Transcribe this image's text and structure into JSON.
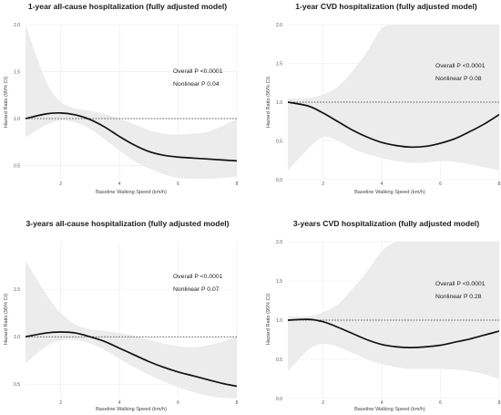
{
  "chart_data": [
    {
      "type": "line",
      "title": "1-year all-cause hospitalization (fully adjusted model)",
      "xlabel": "Baseline Walking Speed (km/h)",
      "ylabel": "Hazard Ratio (95% CI)",
      "xlim": [
        0.8,
        8.0
      ],
      "ylim": [
        0.35,
        2.0
      ],
      "xticks": [
        2,
        4,
        6,
        8
      ],
      "xtick_labels": [
        "2",
        "4",
        "6",
        "8"
      ],
      "yticks": [
        0.5,
        1.0,
        1.5,
        2.0
      ],
      "ytick_labels": [
        "0.5",
        "1.0",
        "1.5",
        "2.0"
      ],
      "reference_line": 1.0,
      "annotations": [
        "Overall P <0.0001",
        "Nonlinear P 0.04"
      ],
      "series": [
        {
          "x": [
            0.8,
            1.5,
            2.0,
            2.5,
            3.0,
            3.5,
            4.0,
            4.5,
            5.0,
            5.5,
            6.0,
            6.5,
            7.0,
            7.5,
            8.0
          ],
          "y": [
            1.0,
            1.05,
            1.06,
            1.04,
            0.99,
            0.91,
            0.81,
            0.72,
            0.65,
            0.61,
            0.59,
            0.58,
            0.57,
            0.56,
            0.55
          ],
          "lower": [
            0.8,
            0.93,
            0.98,
            0.96,
            0.89,
            0.78,
            0.66,
            0.55,
            0.47,
            0.41,
            0.37,
            0.36,
            0.36,
            0.37,
            0.38
          ],
          "upper": [
            2.0,
            1.4,
            1.18,
            1.11,
            1.08,
            1.05,
            1.0,
            0.94,
            0.88,
            0.84,
            0.83,
            0.84,
            0.86,
            0.92,
            1.0
          ]
        }
      ]
    },
    {
      "type": "line",
      "title": "1-year CVD hospitalization (fully adjusted model)",
      "xlabel": "Baseline Walking Speed (km/h)",
      "ylabel": "Hazard Ratio (95% CI)",
      "xlim": [
        0.8,
        8.0
      ],
      "ylim": [
        0.0,
        2.0
      ],
      "xticks": [
        2,
        4,
        6,
        8
      ],
      "xtick_labels": [
        "2",
        "4",
        "6",
        "8"
      ],
      "yticks": [
        0.0,
        0.5,
        1.0,
        1.5,
        2.0
      ],
      "ytick_labels": [
        "0.0",
        "0.5",
        "1.0",
        "1.5",
        "2.0"
      ],
      "reference_line": 1.0,
      "annotations": [
        "Overall P <0.0001",
        "Nonlinear P 0.08"
      ],
      "series": [
        {
          "x": [
            0.8,
            1.5,
            2.0,
            2.5,
            3.0,
            3.5,
            4.0,
            4.5,
            5.0,
            5.5,
            6.0,
            6.5,
            7.0,
            7.5,
            8.0
          ],
          "y": [
            1.0,
            0.95,
            0.86,
            0.75,
            0.64,
            0.55,
            0.48,
            0.44,
            0.42,
            0.43,
            0.47,
            0.53,
            0.62,
            0.72,
            0.84
          ],
          "lower": [
            0.12,
            0.4,
            0.55,
            0.5,
            0.4,
            0.33,
            0.28,
            0.24,
            0.22,
            0.22,
            0.24,
            0.23,
            0.2,
            0.16,
            0.12
          ],
          "upper": [
            1.05,
            1.05,
            1.1,
            1.2,
            1.4,
            1.65,
            1.95,
            2.0,
            2.0,
            2.0,
            2.0,
            2.0,
            2.0,
            2.0,
            2.0
          ]
        }
      ]
    },
    {
      "type": "line",
      "title": "3-years all-cause hospitalization (fully adjusted model)",
      "xlabel": "Baseline Walking Speed (km/h)",
      "ylabel": "Hazard Ratio (95% CI)",
      "xlim": [
        0.8,
        8.0
      ],
      "ylim": [
        0.35,
        2.0
      ],
      "xticks": [
        2,
        4,
        6,
        8
      ],
      "xtick_labels": [
        "2",
        "4",
        "6",
        "8"
      ],
      "yticks": [
        0.5,
        1.0,
        1.5
      ],
      "ytick_labels": [
        "0.5",
        "1.0",
        "1.5"
      ],
      "reference_line": 1.0,
      "annotations": [
        "Overall P <0.0001",
        "Nonlinear P 0.07"
      ],
      "series": [
        {
          "x": [
            0.8,
            1.5,
            2.0,
            2.5,
            3.0,
            3.5,
            4.0,
            4.5,
            5.0,
            5.5,
            6.0,
            6.5,
            7.0,
            7.5,
            8.0
          ],
          "y": [
            1.0,
            1.04,
            1.05,
            1.04,
            1.0,
            0.95,
            0.88,
            0.81,
            0.74,
            0.68,
            0.63,
            0.59,
            0.55,
            0.51,
            0.48
          ],
          "lower": [
            0.72,
            0.9,
            0.96,
            0.97,
            0.93,
            0.86,
            0.77,
            0.68,
            0.6,
            0.53,
            0.47,
            0.42,
            0.38,
            0.36,
            0.35
          ],
          "upper": [
            1.8,
            1.45,
            1.25,
            1.13,
            1.08,
            1.06,
            1.04,
            1.01,
            0.97,
            0.93,
            0.9,
            0.89,
            0.91,
            0.95,
            1.0
          ]
        }
      ]
    },
    {
      "type": "line",
      "title": "3-years CVD hospitalization (fully adjusted model)",
      "xlabel": "Baseline Walking Speed (km/h)",
      "ylabel": "Hazard Ratio (95% CI)",
      "xlim": [
        0.8,
        8.0
      ],
      "ylim": [
        0.0,
        2.0
      ],
      "xticks": [
        2,
        4,
        6,
        8
      ],
      "xtick_labels": [
        "2",
        "4",
        "6",
        "8"
      ],
      "yticks": [
        0.0,
        0.5,
        1.0,
        1.5,
        2.0
      ],
      "ytick_labels": [
        "0.0",
        "0.5",
        "1.0",
        "1.5",
        "2.0"
      ],
      "reference_line": 1.0,
      "annotations": [
        "Overall P <0.0001",
        "Nonlinear P 0.28"
      ],
      "series": [
        {
          "x": [
            0.8,
            1.5,
            2.0,
            2.5,
            3.0,
            3.5,
            4.0,
            4.5,
            5.0,
            5.5,
            6.0,
            6.5,
            7.0,
            7.5,
            8.0
          ],
          "y": [
            1.0,
            1.01,
            0.98,
            0.91,
            0.83,
            0.75,
            0.69,
            0.66,
            0.65,
            0.66,
            0.68,
            0.72,
            0.76,
            0.81,
            0.86
          ],
          "lower": [
            0.35,
            0.62,
            0.7,
            0.66,
            0.58,
            0.5,
            0.44,
            0.4,
            0.38,
            0.38,
            0.38,
            0.37,
            0.35,
            0.31,
            0.25
          ],
          "upper": [
            1.05,
            1.05,
            1.1,
            1.2,
            1.4,
            1.62,
            1.88,
            2.0,
            2.0,
            2.0,
            2.0,
            2.0,
            2.0,
            2.0,
            2.0
          ]
        }
      ]
    }
  ]
}
